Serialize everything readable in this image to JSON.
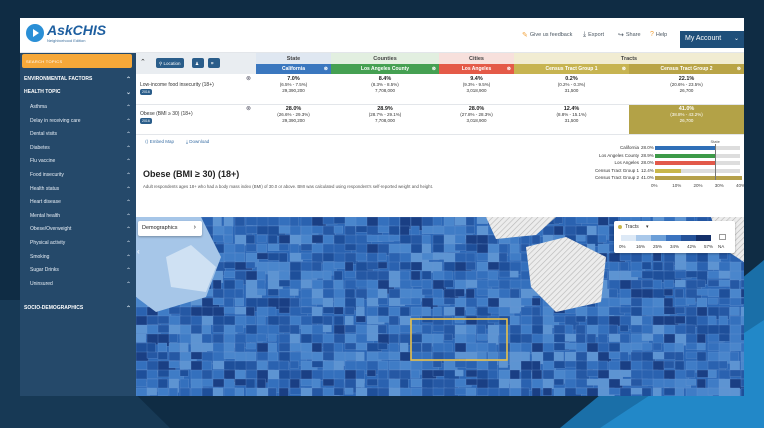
{
  "header": {
    "logo_main": "AskCHIS",
    "logo_sub": "Neighborhood Edition",
    "links": [
      {
        "icon": "megaphone-icon",
        "label": "Give us feedback"
      },
      {
        "icon": "download-icon",
        "label": "Export"
      },
      {
        "icon": "share-icon",
        "label": "Share"
      },
      {
        "icon": "help-icon",
        "label": "Help"
      }
    ],
    "account_label": "My Account"
  },
  "sidebar": {
    "search_placeholder": "SEARCH TOPICS",
    "sections": {
      "environmental": "ENVIRONMENTAL FACTORS",
      "health_topic": "HEALTH TOPIC",
      "socio": "SOCIO-DEMOGRAPHICS"
    },
    "items": [
      "Asthma",
      "Delay in receiving care",
      "Dental visits",
      "Diabetes",
      "Flu vaccine",
      "Food insecurity",
      "Health status",
      "Heart disease",
      "Mental health",
      "Obese/Overweight",
      "Physical activity",
      "Smoking",
      "Sugar Drinks",
      "Uninsured"
    ]
  },
  "toolbar": {
    "location_label": "Location"
  },
  "table": {
    "groups": [
      "State",
      "Counties",
      "Cities",
      "Tracts"
    ],
    "columns": [
      "California",
      "Los Angeles County",
      "Los Angeles",
      "Census Tract Group 1",
      "Census Tract Group 2"
    ],
    "rows": [
      {
        "indicator": "Low-income food insecurity (18+)",
        "year": "2016",
        "cells": [
          {
            "pct": "7.0%",
            "ci": "(6.5% - 7.5%)",
            "pop": "29,390,200"
          },
          {
            "pct": "8.4%",
            "ci": "(8.3% - 8.5%)",
            "pop": "7,708,000"
          },
          {
            "pct": "9.4%",
            "ci": "(9.3% - 9.5%)",
            "pop": "3,018,900"
          },
          {
            "pct": "0.2%",
            "ci": "(0.2% - 0.3%)",
            "pop": "31,500"
          },
          {
            "pct": "22.1%",
            "ci": "(20.6% - 23.5%)",
            "pop": "26,700"
          }
        ]
      },
      {
        "indicator": "Obese (BMI ≥ 30) (18+)",
        "year": "2016",
        "cells": [
          {
            "pct": "28.0%",
            "ci": "(26.6% - 29.3%)",
            "pop": "29,390,200"
          },
          {
            "pct": "28.9%",
            "ci": "(28.7% - 29.1%)",
            "pop": "7,708,000"
          },
          {
            "pct": "28.0%",
            "ci": "(27.8% - 28.3%)",
            "pop": "3,018,900"
          },
          {
            "pct": "12.4%",
            "ci": "(8.8% - 15.1%)",
            "pop": "31,500"
          },
          {
            "pct": "41.0%",
            "ci": "(38.8% - 43.2%)",
            "pop": "26,700"
          }
        ]
      }
    ],
    "actions": [
      "Embed Map",
      "Download"
    ]
  },
  "detail": {
    "title": "Obese (BMI ≥ 30) (18+)",
    "description": "Adult respondents ages 18+ who had a body mass index (BMI) of 30.0 or above. BMI was calculated using respondent's self-reported weight and height."
  },
  "chart_data": {
    "type": "bar",
    "categories": [
      "California",
      "Los Angeles County",
      "Los Angeles",
      "Census Tract Group 1",
      "Census Tract Group 2"
    ],
    "values": [
      28.0,
      28.9,
      28.0,
      12.4,
      41.0
    ],
    "value_labels": [
      "28.0%",
      "28.9%",
      "28.0%",
      "12.4%",
      "41.0%"
    ],
    "colors": [
      "#2f6fb8",
      "#3d9a48",
      "#e2594a",
      "#c9b74a",
      "#b5a04a"
    ],
    "xlim": [
      0,
      40
    ],
    "ticks": [
      "0%",
      "10%",
      "20%",
      "30%",
      "40%"
    ],
    "reference_label": "State",
    "reference_value": 28.0
  },
  "map": {
    "demographics_label": "Demographics",
    "legend_title": "Tracts",
    "legend_ticks": [
      "0%",
      "16%",
      "25%",
      "34%",
      "42%",
      "57%"
    ],
    "legend_na": "NA",
    "legend_colors": [
      "#dde9f6",
      "#a9c8ea",
      "#6c9fd8",
      "#3b73bf",
      "#25539a",
      "#14306a"
    ]
  }
}
